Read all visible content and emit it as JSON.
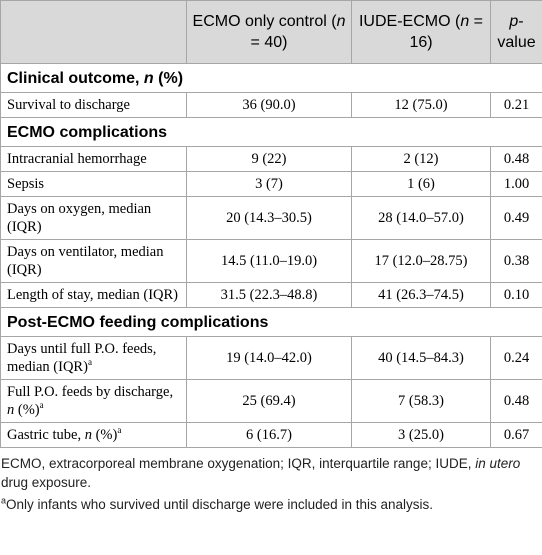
{
  "table": {
    "header": [
      [],
      [
        {
          "text": "ECMO only control ("
        },
        {
          "text": "n",
          "italic": true
        },
        {
          "text": " = 40)"
        }
      ],
      [
        {
          "text": "IUDE-ECMO ("
        },
        {
          "text": "n",
          "italic": true
        },
        {
          "text": " = 16)"
        }
      ],
      [
        {
          "text": "p",
          "italic": true
        },
        {
          "text": "-value"
        }
      ]
    ],
    "rows": [
      {
        "section": [
          {
            "text": "Clinical outcome, "
          },
          {
            "text": "n",
            "italic": true
          },
          {
            "text": " (%)"
          }
        ]
      },
      {
        "cells": [
          [
            {
              "text": "Survival to discharge"
            }
          ],
          [
            {
              "text": "36 (90.0)"
            }
          ],
          [
            {
              "text": "12 (75.0)"
            }
          ],
          [
            {
              "text": "0.21"
            }
          ]
        ]
      },
      {
        "section": [
          {
            "text": "ECMO complications"
          }
        ]
      },
      {
        "cells": [
          [
            {
              "text": "Intracranial hemorrhage"
            }
          ],
          [
            {
              "text": "9 (22)"
            }
          ],
          [
            {
              "text": "2 (12)"
            }
          ],
          [
            {
              "text": "0.48"
            }
          ]
        ]
      },
      {
        "cells": [
          [
            {
              "text": "Sepsis"
            }
          ],
          [
            {
              "text": "3 (7)"
            }
          ],
          [
            {
              "text": "1 (6)"
            }
          ],
          [
            {
              "text": "1.00"
            }
          ]
        ]
      },
      {
        "cells": [
          [
            {
              "text": "Days on oxygen, median (IQR)"
            }
          ],
          [
            {
              "text": "20 (14.3–30.5)"
            }
          ],
          [
            {
              "text": "28 (14.0–57.0)"
            }
          ],
          [
            {
              "text": "0.49"
            }
          ]
        ]
      },
      {
        "cells": [
          [
            {
              "text": "Days on ventilator, median (IQR)"
            }
          ],
          [
            {
              "text": "14.5 (11.0–19.0)"
            }
          ],
          [
            {
              "text": "17 (12.0–28.75)"
            }
          ],
          [
            {
              "text": "0.38"
            }
          ]
        ]
      },
      {
        "cells": [
          [
            {
              "text": "Length of stay, median (IQR)"
            }
          ],
          [
            {
              "text": "31.5 (22.3–48.8)"
            }
          ],
          [
            {
              "text": "41 (26.3–74.5)"
            }
          ],
          [
            {
              "text": "0.10"
            }
          ]
        ]
      },
      {
        "section": [
          {
            "text": "Post-ECMO feeding complications"
          }
        ]
      },
      {
        "cells": [
          [
            {
              "text": "Days until full P.O. feeds, median (IQR)"
            },
            {
              "text": "a",
              "sup": true
            }
          ],
          [
            {
              "text": "19 (14.0–42.0)"
            }
          ],
          [
            {
              "text": "40 (14.5–84.3)"
            }
          ],
          [
            {
              "text": "0.24"
            }
          ]
        ]
      },
      {
        "cells": [
          [
            {
              "text": "Full P.O. feeds by discharge, "
            },
            {
              "text": "n",
              "italic": true
            },
            {
              "text": " (%)"
            },
            {
              "text": "a",
              "sup": true
            }
          ],
          [
            {
              "text": "25 (69.4)"
            }
          ],
          [
            {
              "text": "7 (58.3)"
            }
          ],
          [
            {
              "text": "0.48"
            }
          ]
        ]
      },
      {
        "cells": [
          [
            {
              "text": "Gastric tube, "
            },
            {
              "text": "n",
              "italic": true
            },
            {
              "text": " (%)"
            },
            {
              "text": "a",
              "sup": true
            }
          ],
          [
            {
              "text": "6 (16.7)"
            }
          ],
          [
            {
              "text": "3 (25.0)"
            }
          ],
          [
            {
              "text": "0.67"
            }
          ]
        ]
      }
    ]
  },
  "footnotes": [
    [
      {
        "text": "ECMO, extracorporeal membrane oxygenation; IQR, interquartile range; IUDE, "
      },
      {
        "text": "in utero",
        "italic": true
      },
      {
        "text": " drug exposure."
      }
    ],
    [
      {
        "text": "a",
        "sup": true
      },
      {
        "text": "Only infants who survived until discharge were included in this analysis."
      }
    ]
  ]
}
